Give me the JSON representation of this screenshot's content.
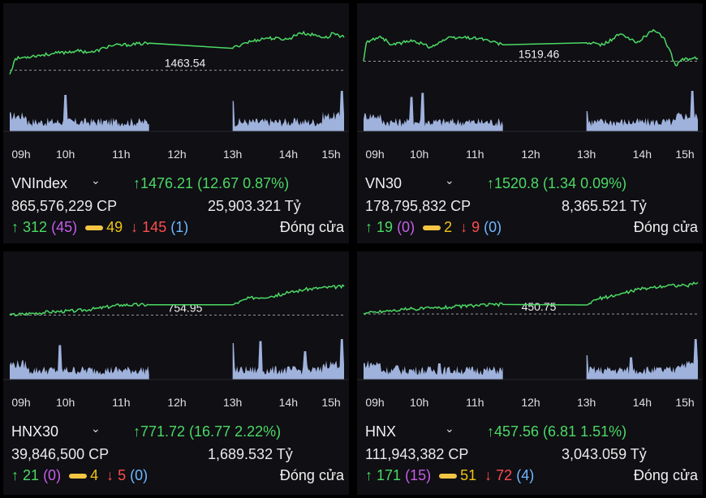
{
  "colors": {
    "up": "#4cd964",
    "down": "#ff4d4d",
    "ref": "#f1c40f",
    "ceiling": "#c65de8",
    "floor": "#6fb7ff",
    "volume": "#b9cfff",
    "panel": "#0f0f14"
  },
  "time_axis": [
    "09h",
    "10h",
    "11h",
    "12h",
    "13h",
    "14h",
    "15h"
  ],
  "panels": [
    {
      "name": "VNIndex",
      "ref_label": "1463.54",
      "change": "1476.21 (12.67  0.87%)",
      "volume": "865,576,229 CP",
      "value": "25,903.321 Tỷ",
      "advancers": "312",
      "ceiling": "(45)",
      "unchanged": "49",
      "decliners": "145",
      "floor": "(1)",
      "status": "Đóng cửa",
      "chart_data": {
        "type": "line",
        "x_range": [
          "09:00",
          "15:00"
        ],
        "ref": 1463.54,
        "y_range": [
          1455,
          1480
        ],
        "series": [
          {
            "values": [
              [
                9.0,
                1462
              ],
              [
                9.1,
                1468
              ],
              [
                9.4,
                1469
              ],
              [
                9.8,
                1470
              ],
              [
                10.2,
                1471
              ],
              [
                10.5,
                1470.5
              ],
              [
                10.8,
                1473
              ],
              [
                11.2,
                1473.5
              ],
              [
                11.5,
                1474
              ],
              [
                13.0,
                1472
              ],
              [
                13.2,
                1474
              ],
              [
                13.6,
                1476
              ],
              [
                14.0,
                1475.5
              ],
              [
                14.2,
                1478
              ],
              [
                14.5,
                1477
              ],
              [
                14.7,
                1476
              ],
              [
                14.8,
                1478
              ],
              [
                15.0,
                1476.21
              ]
            ]
          }
        ]
      }
    },
    {
      "name": "VN30",
      "ref_label": "1519.46",
      "change": "1520.8 (1.34  0.09%)",
      "volume": "178,795,832 CP",
      "value": "8,365.521 Tỷ",
      "advancers": "19",
      "ceiling": "(0)",
      "unchanged": "2",
      "decliners": "9",
      "floor": "(0)",
      "status": "Đóng cửa",
      "chart_data": {
        "type": "line",
        "x_range": [
          "09:00",
          "15:00"
        ],
        "ref": 1519.46,
        "y_range": [
          1505,
          1535
        ],
        "series": [
          {
            "values": [
              [
                9.0,
                1519.5
              ],
              [
                9.05,
                1528
              ],
              [
                9.3,
                1531
              ],
              [
                9.5,
                1527
              ],
              [
                9.9,
                1529
              ],
              [
                10.2,
                1526
              ],
              [
                10.5,
                1530
              ],
              [
                10.8,
                1530.5
              ],
              [
                11.1,
                1530
              ],
              [
                11.5,
                1527
              ],
              [
                13.0,
                1528
              ],
              [
                13.3,
                1527
              ],
              [
                13.6,
                1532
              ],
              [
                13.9,
                1528
              ],
              [
                14.2,
                1534
              ],
              [
                14.4,
                1530
              ],
              [
                14.6,
                1517.5
              ],
              [
                14.7,
                1520
              ],
              [
                15.0,
                1520.8
              ]
            ]
          }
        ]
      }
    },
    {
      "name": "HNX30",
      "ref_label": "754.95",
      "change": "771.72 (16.77  2.22%)",
      "volume": "39,846,500 CP",
      "value": "1,689.532 Tỷ",
      "advancers": "21",
      "ceiling": "(0)",
      "unchanged": "4",
      "decliners": "5",
      "floor": "(0)",
      "status": "Đóng cửa",
      "chart_data": {
        "type": "line",
        "x_range": [
          "09:00",
          "15:00"
        ],
        "ref": 754.95,
        "y_range": [
          740,
          778
        ],
        "series": [
          {
            "values": [
              [
                9.0,
                755
              ],
              [
                9.4,
                756
              ],
              [
                9.8,
                757
              ],
              [
                10.2,
                757.5
              ],
              [
                10.6,
                759
              ],
              [
                11.0,
                761
              ],
              [
                11.5,
                761
              ],
              [
                13.0,
                761
              ],
              [
                13.3,
                765
              ],
              [
                13.7,
                766
              ],
              [
                14.0,
                768
              ],
              [
                14.3,
                770
              ],
              [
                14.6,
                771
              ],
              [
                15.0,
                771.72
              ]
            ]
          }
        ]
      }
    },
    {
      "name": "HNX",
      "ref_label": "450.75",
      "change": "457.56 (6.81  1.51%)",
      "volume": "111,943,382 CP",
      "value": "3,043.059 Tỷ",
      "advancers": "171",
      "ceiling": "(15)",
      "unchanged": "51",
      "decliners": "72",
      "floor": "(4)",
      "status": "Đóng cửa",
      "chart_data": {
        "type": "line",
        "x_range": [
          "09:00",
          "15:00"
        ],
        "ref": 450.75,
        "y_range": [
          445,
          459
        ],
        "series": [
          {
            "values": [
              [
                9.0,
                450.9
              ],
              [
                9.4,
                451.4
              ],
              [
                9.8,
                451.8
              ],
              [
                10.2,
                452
              ],
              [
                10.6,
                452.3
              ],
              [
                11.0,
                452.6
              ],
              [
                11.5,
                452.8
              ],
              [
                13.0,
                452.7
              ],
              [
                13.2,
                454
              ],
              [
                13.6,
                455
              ],
              [
                13.9,
                456
              ],
              [
                14.2,
                456.5
              ],
              [
                14.5,
                457
              ],
              [
                14.8,
                456.8
              ],
              [
                15.0,
                457.56
              ]
            ]
          }
        ]
      }
    }
  ]
}
